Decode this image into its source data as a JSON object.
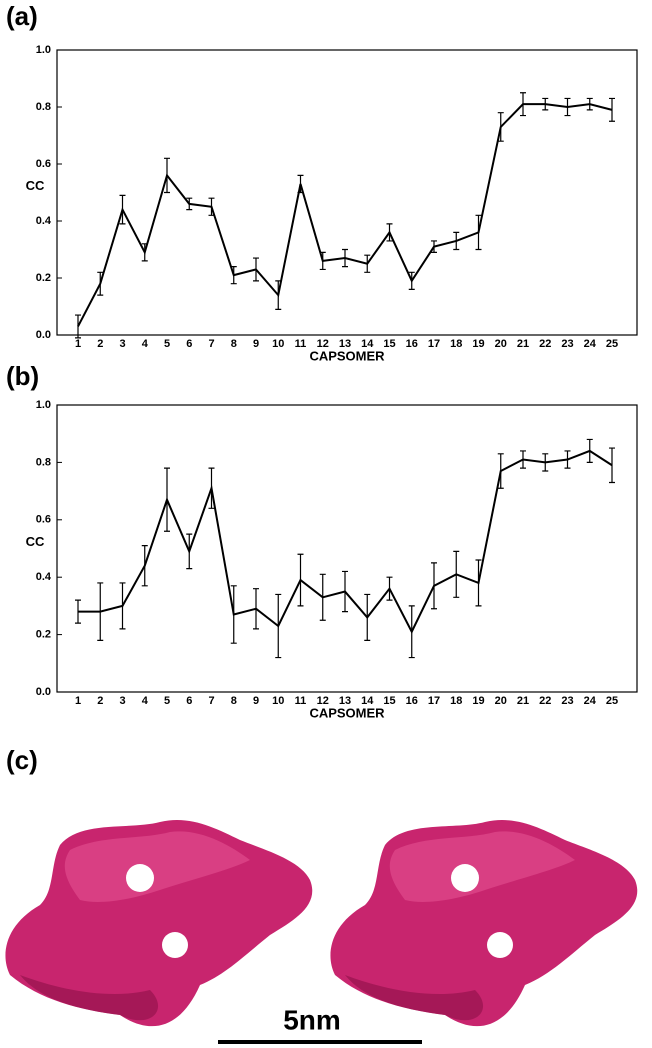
{
  "chart_data": [
    {
      "type": "line",
      "panel": "(a)",
      "y_label": "CC",
      "x_label": "CAPSOMER",
      "color": "#000000",
      "categories": [
        "1",
        "2",
        "3",
        "4",
        "5",
        "6",
        "7",
        "8",
        "9",
        "10",
        "11",
        "12",
        "13",
        "14",
        "15",
        "16",
        "17",
        "18",
        "19",
        "20",
        "21",
        "22",
        "23",
        "24",
        "25"
      ],
      "values": [
        0.03,
        0.18,
        0.44,
        0.29,
        0.56,
        0.46,
        0.45,
        0.21,
        0.23,
        0.14,
        0.53,
        0.26,
        0.27,
        0.25,
        0.36,
        0.19,
        0.31,
        0.33,
        0.36,
        0.73,
        0.81,
        0.81,
        0.8,
        0.81,
        0.79
      ],
      "errors": [
        0.04,
        0.04,
        0.05,
        0.03,
        0.06,
        0.02,
        0.03,
        0.03,
        0.04,
        0.05,
        0.03,
        0.03,
        0.03,
        0.03,
        0.03,
        0.03,
        0.02,
        0.03,
        0.06,
        0.05,
        0.04,
        0.02,
        0.03,
        0.02,
        0.04
      ],
      "ylim": [
        0,
        1
      ],
      "yticks": [
        {
          "value": 0,
          "label": "0.0"
        },
        {
          "value": 0.2,
          "label": "0.2"
        },
        {
          "value": 0.4,
          "label": "0.4"
        },
        {
          "value": 0.6,
          "label": "0.6"
        },
        {
          "value": 0.8,
          "label": "0.8"
        },
        {
          "value": 1,
          "label": "1.0"
        }
      ]
    },
    {
      "type": "line",
      "panel": "(b)",
      "y_label": "CC",
      "x_label": "CAPSOMER",
      "color": "#000000",
      "categories": [
        "1",
        "2",
        "3",
        "4",
        "5",
        "6",
        "7",
        "8",
        "9",
        "10",
        "11",
        "12",
        "13",
        "14",
        "15",
        "16",
        "17",
        "18",
        "19",
        "20",
        "21",
        "22",
        "23",
        "24",
        "25"
      ],
      "values": [
        0.28,
        0.28,
        0.3,
        0.44,
        0.67,
        0.49,
        0.71,
        0.27,
        0.29,
        0.23,
        0.39,
        0.33,
        0.35,
        0.26,
        0.36,
        0.21,
        0.37,
        0.41,
        0.38,
        0.77,
        0.81,
        0.8,
        0.81,
        0.84,
        0.79
      ],
      "errors": [
        0.04,
        0.1,
        0.08,
        0.07,
        0.11,
        0.06,
        0.07,
        0.1,
        0.07,
        0.11,
        0.09,
        0.08,
        0.07,
        0.08,
        0.04,
        0.09,
        0.08,
        0.08,
        0.08,
        0.06,
        0.03,
        0.03,
        0.03,
        0.04,
        0.06
      ],
      "ylim": [
        0,
        1
      ],
      "yticks": [
        {
          "value": 0,
          "label": "0.0"
        },
        {
          "value": 0.2,
          "label": "0.2"
        },
        {
          "value": 0.4,
          "label": "0.4"
        },
        {
          "value": 0.6,
          "label": "0.6"
        },
        {
          "value": 0.8,
          "label": "0.8"
        },
        {
          "value": 1,
          "label": "1.0"
        }
      ]
    }
  ],
  "figure": {
    "panel_c": "(c)",
    "scale_bar": "5nm"
  }
}
